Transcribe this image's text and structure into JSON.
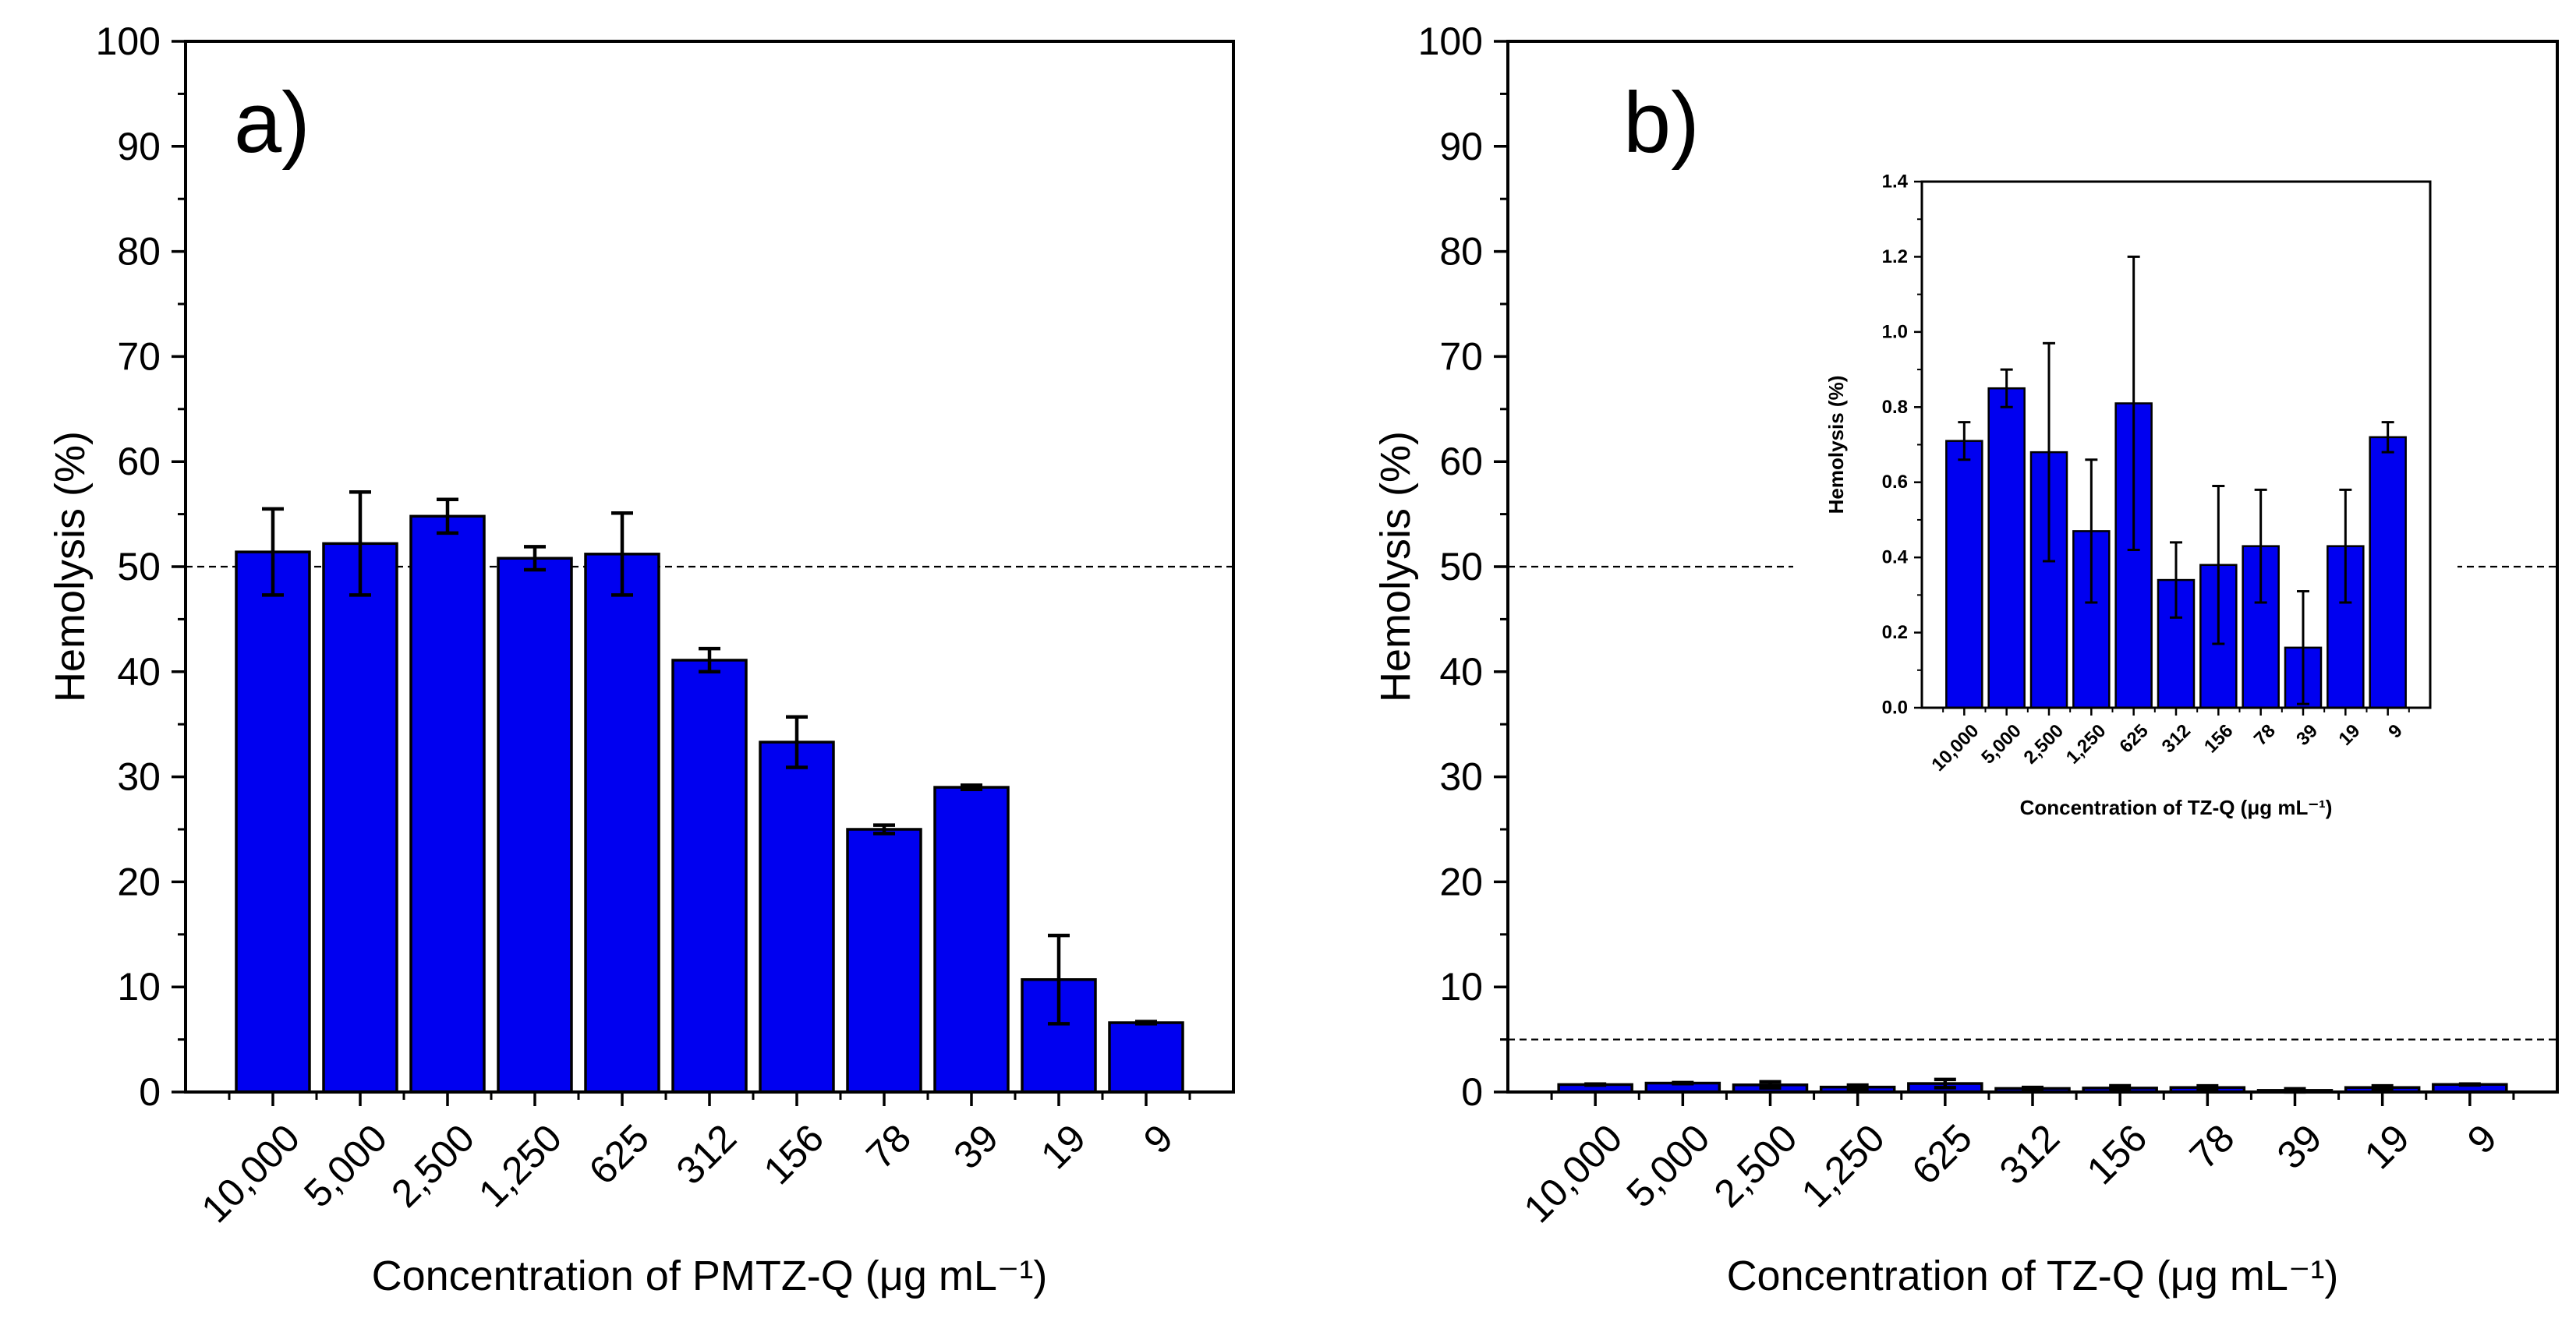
{
  "chart_data": [
    {
      "id": "a",
      "type": "bar",
      "panel_label": "a)",
      "xlabel": "Concentration of PMTZ-Q (μg mL⁻¹)",
      "ylabel": "Hemolysis (%)",
      "ylim": [
        0,
        100
      ],
      "yticks": [
        0,
        10,
        20,
        30,
        40,
        50,
        60,
        70,
        80,
        90,
        100
      ],
      "categories": [
        "10,000",
        "5,000",
        "2,500",
        "1,250",
        "625",
        "312",
        "156",
        "78",
        "39",
        "19",
        "9"
      ],
      "values": [
        51.4,
        52.2,
        54.8,
        50.8,
        51.2,
        41.1,
        33.3,
        25.0,
        29.0,
        10.7,
        6.6
      ],
      "errors": [
        4.1,
        4.9,
        1.6,
        1.1,
        3.9,
        1.1,
        2.4,
        0.4,
        0.2,
        4.2,
        0.1
      ],
      "reference_line": 50,
      "bar_color": "#0000f0"
    },
    {
      "id": "b",
      "type": "bar",
      "panel_label": "b)",
      "xlabel": "Concentration of TZ-Q (μg mL⁻¹)",
      "ylabel": "Hemolysis (%)",
      "ylim": [
        0,
        100
      ],
      "yticks": [
        0,
        10,
        20,
        30,
        40,
        50,
        60,
        70,
        80,
        90,
        100
      ],
      "categories": [
        "10,000",
        "5,000",
        "2,500",
        "1,250",
        "625",
        "312",
        "156",
        "78",
        "39",
        "19",
        "9"
      ],
      "values": [
        0.71,
        0.85,
        0.68,
        0.47,
        0.81,
        0.34,
        0.38,
        0.43,
        0.16,
        0.43,
        0.72
      ],
      "errors": [
        0.05,
        0.05,
        0.29,
        0.19,
        0.39,
        0.1,
        0.21,
        0.15,
        0.15,
        0.15,
        0.04
      ],
      "reference_lines": [
        50,
        5
      ],
      "bar_color": "#0000f0"
    },
    {
      "id": "b-inset",
      "type": "bar",
      "xlabel": "Concentration of TZ-Q (μg mL⁻¹)",
      "ylabel": "Hemolysis (%)",
      "ylim": [
        0,
        1.4
      ],
      "yticks": [
        "0.0",
        "0.2",
        "0.4",
        "0.6",
        "0.8",
        "1.0",
        "1.2",
        "1.4"
      ],
      "categories": [
        "10,000",
        "5,000",
        "2,500",
        "1,250",
        "625",
        "312",
        "156",
        "78",
        "39",
        "19",
        "9"
      ],
      "values": [
        0.71,
        0.85,
        0.68,
        0.47,
        0.81,
        0.34,
        0.38,
        0.43,
        0.16,
        0.43,
        0.72
      ],
      "errors": [
        0.05,
        0.05,
        0.29,
        0.19,
        0.39,
        0.1,
        0.21,
        0.15,
        0.15,
        0.15,
        0.04
      ],
      "bar_color": "#0000f0"
    }
  ]
}
